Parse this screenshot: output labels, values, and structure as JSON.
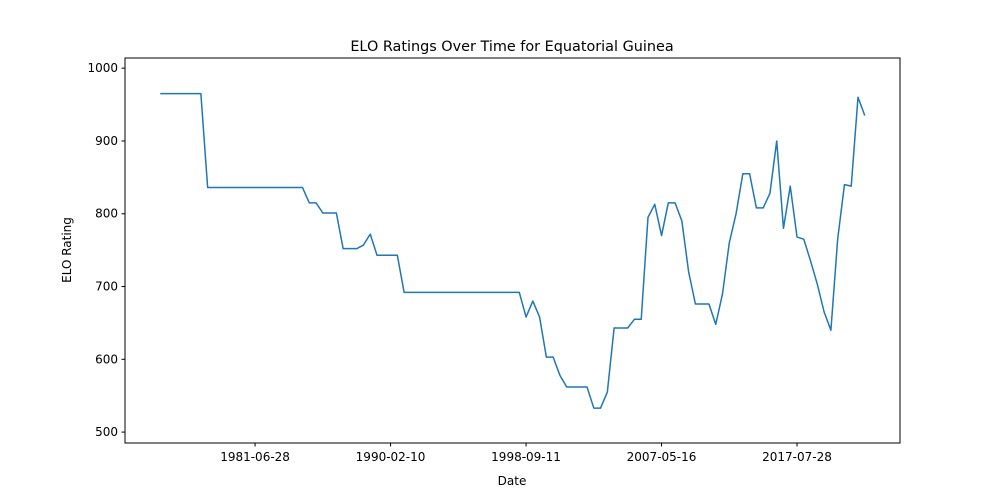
{
  "chart_data": {
    "type": "line",
    "title": "ELO Ratings Over Time for Equatorial Guinea",
    "x_label": "Date",
    "y_label": "ELO Rating",
    "categories": [
      null,
      null,
      null,
      null,
      null,
      null,
      null,
      null,
      null,
      null,
      null,
      null,
      null,
      null,
      "1981-06-28",
      null,
      null,
      null,
      null,
      null,
      null,
      null,
      null,
      null,
      null,
      null,
      null,
      null,
      null,
      null,
      null,
      null,
      null,
      null,
      "1990-02-10",
      null,
      null,
      null,
      null,
      null,
      null,
      null,
      null,
      null,
      null,
      null,
      null,
      null,
      null,
      null,
      null,
      null,
      null,
      null,
      "1998-09-11",
      null,
      null,
      null,
      null,
      null,
      null,
      null,
      null,
      null,
      null,
      null,
      null,
      null,
      null,
      null,
      null,
      null,
      null,
      null,
      "2007-05-16",
      null,
      null,
      null,
      null,
      null,
      null,
      null,
      null,
      null,
      null,
      null,
      null,
      null,
      null,
      null,
      null,
      null,
      null,
      null,
      "2017-07-28",
      null,
      null,
      null,
      null,
      null,
      null,
      null,
      null,
      null,
      null
    ],
    "series": [
      {
        "name": "ELO Rating",
        "color": "#1f77b4",
        "values": [
          965,
          965,
          965,
          965,
          965,
          965,
          965,
          836,
          836,
          836,
          836,
          836,
          836,
          836,
          836,
          836,
          836,
          836,
          836,
          836,
          836,
          836,
          815,
          815,
          801,
          801,
          801,
          752,
          752,
          752,
          757,
          772,
          743,
          743,
          743,
          743,
          692,
          692,
          692,
          692,
          692,
          692,
          692,
          692,
          692,
          692,
          692,
          692,
          692,
          692,
          692,
          692,
          692,
          692,
          658,
          680,
          658,
          603,
          603,
          578,
          562,
          562,
          562,
          562,
          533,
          533,
          555,
          643,
          643,
          643,
          655,
          655,
          795,
          813,
          770,
          815,
          815,
          790,
          720,
          676,
          676,
          676,
          648,
          690,
          760,
          800,
          855,
          855,
          808,
          808,
          828,
          900,
          780,
          838,
          768,
          765,
          735,
          703,
          665,
          640,
          765,
          840,
          838,
          960,
          935
        ]
      }
    ],
    "ylim": [
      485,
      1014
    ],
    "yticks": [
      500,
      600,
      700,
      800,
      900,
      1000
    ],
    "grid": false
  }
}
